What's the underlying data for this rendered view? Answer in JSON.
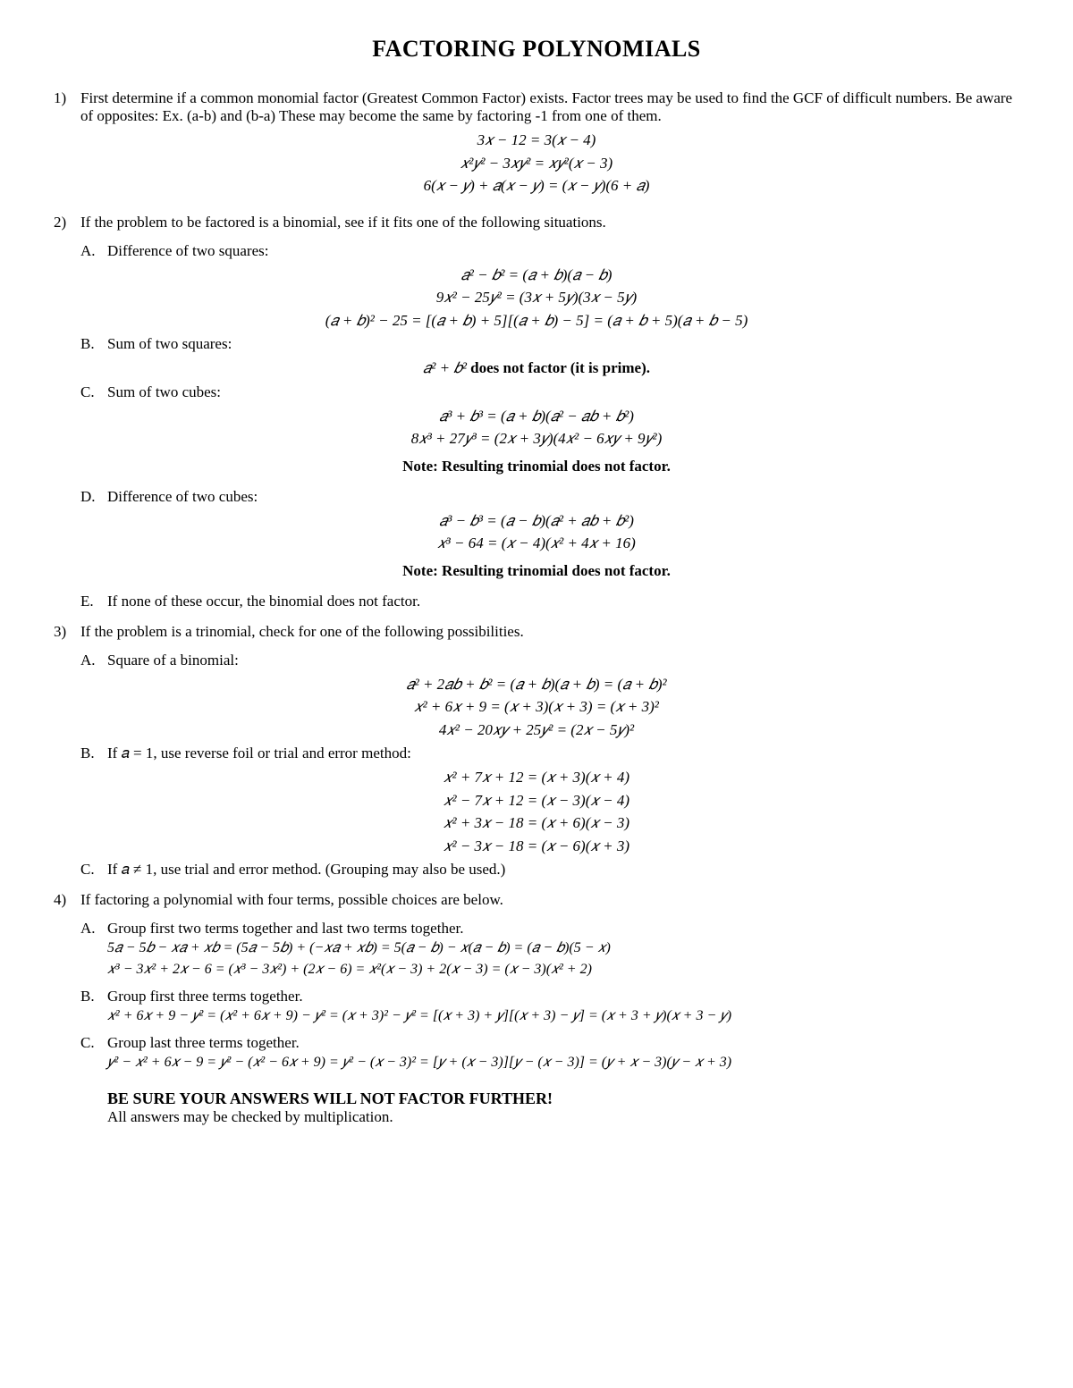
{
  "title": "FACTORING POLYNOMIALS",
  "item1": {
    "num": "1)",
    "text": "First determine if a common monomial factor (Greatest Common Factor) exists. Factor trees may be used to find the GCF of difficult numbers. Be aware of opposites: Ex. (a-b) and (b-a)   These may become the same by factoring  -1 from one of them.",
    "eq1": "3𝑥 − 12 = 3(𝑥 − 4)",
    "eq2": "𝑥²𝑦² − 3𝑥𝑦² = 𝑥𝑦²(𝑥 − 3)",
    "eq3": "6(𝑥 − 𝑦) + 𝑎(𝑥 − 𝑦) = (𝑥 − 𝑦)(6 + 𝑎)"
  },
  "item2": {
    "num": "2)",
    "text": "If the problem to be factored is a binomial, see if it fits one of the following situations.",
    "A": {
      "letter": "A.",
      "label": "Difference of two squares:",
      "eq1": "𝑎² − 𝑏² = (𝑎 + 𝑏)(𝑎 − 𝑏)",
      "eq2": "9𝑥² − 25𝑦² = (3𝑥 + 5𝑦)(3𝑥 − 5𝑦)",
      "eq3": "(𝑎 + 𝑏)² − 25 = [(𝑎 + 𝑏) + 5][(𝑎 + 𝑏) − 5] = (𝑎 + 𝑏 + 5)(𝑎 + 𝑏 − 5)"
    },
    "B": {
      "letter": "B.",
      "label": "Sum of two squares:",
      "eq1": "𝑎² + 𝑏² does not factor (it is prime)."
    },
    "C": {
      "letter": "C.",
      "label": "Sum of two cubes:",
      "eq1": "𝑎³ + 𝑏³ = (𝑎 + 𝑏)(𝑎² − 𝑎𝑏 + 𝑏²)",
      "eq2": "8𝑥³ + 27𝑦³ = (2𝑥 + 3𝑦)(4𝑥² − 6𝑥𝑦 + 9𝑦²)",
      "note": "Note: Resulting trinomial does not factor."
    },
    "D": {
      "letter": "D.",
      "label": "Difference of two cubes:",
      "eq1": "𝑎³ − 𝑏³ = (𝑎 − 𝑏)(𝑎² + 𝑎𝑏 + 𝑏²)",
      "eq2": "𝑥³ − 64 = (𝑥 − 4)(𝑥² + 4𝑥 + 16)",
      "note": "Note: Resulting trinomial does not factor."
    },
    "E": {
      "letter": "E.",
      "label": "If none of these occur, the binomial does not factor."
    }
  },
  "item3": {
    "num": "3)",
    "text": "If the problem is a trinomial, check for one of the following possibilities.",
    "A": {
      "letter": "A.",
      "label": "Square of a binomial:",
      "eq1": "𝑎² + 2𝑎𝑏 + 𝑏² = (𝑎 + 𝑏)(𝑎 + 𝑏) = (𝑎 + 𝑏)²",
      "eq2": "𝑥² + 6𝑥 + 9 = (𝑥 + 3)(𝑥 + 3) = (𝑥 + 3)²",
      "eq3": "4𝑥² − 20𝑥𝑦 + 25𝑦² = (2𝑥 − 5𝑦)²"
    },
    "B": {
      "letter": "B.",
      "label": "If 𝑎 = 1, use reverse foil or trial and error method:",
      "eq1": "𝑥² + 7𝑥 + 12 = (𝑥 + 3)(𝑥 + 4)",
      "eq2": "𝑥² − 7𝑥 + 12 = (𝑥 − 3)(𝑥 − 4)",
      "eq3": "𝑥² + 3𝑥 − 18 = (𝑥 + 6)(𝑥 − 3)",
      "eq4": "𝑥² − 3𝑥 − 18 = (𝑥 − 6)(𝑥 + 3)"
    },
    "C": {
      "letter": "C.",
      "label": "If 𝑎 ≠ 1, use trial and error method. (Grouping may also be used.)"
    }
  },
  "item4": {
    "num": "4)",
    "text": "If factoring a polynomial with four terms, possible choices are below.",
    "A": {
      "letter": "A.",
      "label": "Group first two terms together and last two terms together.",
      "eq1": "5𝑎 − 5𝑏 − 𝑥𝑎 + 𝑥𝑏 = (5𝑎 − 5𝑏) + (−𝑥𝑎 + 𝑥𝑏) = 5(𝑎 − 𝑏) − 𝑥(𝑎 − 𝑏) = (𝑎 − 𝑏)(5 − 𝑥)",
      "eq2": "𝑥³ − 3𝑥² + 2𝑥 − 6 = (𝑥³ − 3𝑥²) + (2𝑥 − 6) = 𝑥²(𝑥 − 3) + 2(𝑥 − 3) = (𝑥 − 3)(𝑥² + 2)"
    },
    "B": {
      "letter": "B.",
      "label": "Group first three terms together.",
      "eq1": "𝑥² + 6𝑥 + 9 − 𝑦² = (𝑥² + 6𝑥 + 9) − 𝑦² = (𝑥 + 3)² − 𝑦² = [(𝑥 + 3) + 𝑦][(𝑥 + 3) − 𝑦] = (𝑥 + 3 + 𝑦)(𝑥 + 3 − 𝑦)"
    },
    "C": {
      "letter": "C.",
      "label": "Group last three terms together.",
      "eq1": "𝑦² − 𝑥² + 6𝑥 − 9 = 𝑦² − (𝑥² − 6𝑥 + 9) = 𝑦² − (𝑥 − 3)² = [𝑦 + (𝑥 − 3)][𝑦 − (𝑥 − 3)] = (𝑦 + 𝑥 − 3)(𝑦 − 𝑥 + 3)"
    }
  },
  "final": {
    "bold": "BE SURE YOUR ANSWERS WILL NOT FACTOR FURTHER!",
    "text": "All answers may be checked by multiplication."
  }
}
